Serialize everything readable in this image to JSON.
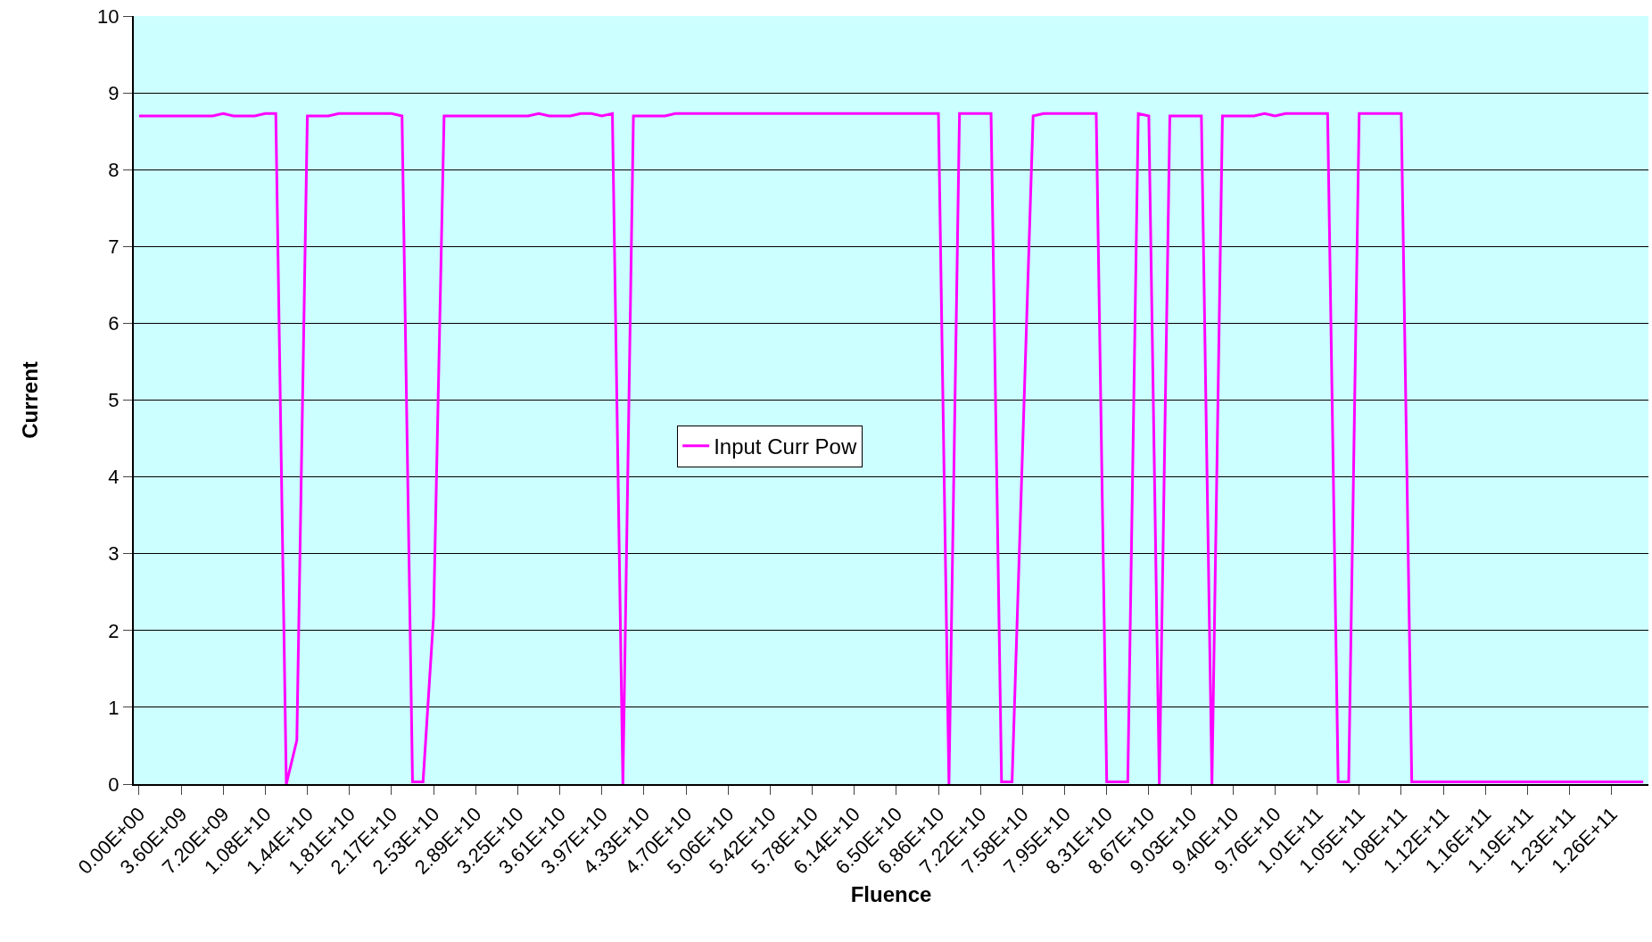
{
  "chart_data": {
    "type": "line",
    "xlabel": "Fluence",
    "ylabel": "Current",
    "categories": [
      "0.00E+00",
      null,
      null,
      null,
      "3.60E+09",
      null,
      null,
      null,
      "7.20E+09",
      null,
      null,
      null,
      "1.08E+10",
      null,
      null,
      null,
      "1.44E+10",
      null,
      null,
      null,
      "1.81E+10",
      null,
      null,
      null,
      "2.17E+10",
      null,
      null,
      null,
      "2.53E+10",
      null,
      null,
      null,
      "2.89E+10",
      null,
      null,
      null,
      "3.25E+10",
      null,
      null,
      null,
      "3.61E+10",
      null,
      null,
      null,
      "3.97E+10",
      null,
      null,
      null,
      "4.33E+10",
      null,
      null,
      null,
      "4.70E+10",
      null,
      null,
      null,
      "5.06E+10",
      null,
      null,
      null,
      "5.42E+10",
      null,
      null,
      null,
      "5.78E+10",
      null,
      null,
      null,
      "6.14E+10",
      null,
      null,
      null,
      "6.50E+10",
      null,
      null,
      null,
      "6.86E+10",
      null,
      null,
      null,
      "7.22E+10",
      null,
      null,
      null,
      "7.58E+10",
      null,
      null,
      null,
      "7.95E+10",
      null,
      null,
      null,
      "8.31E+10",
      null,
      null,
      null,
      "8.67E+10",
      null,
      null,
      null,
      "9.03E+10",
      null,
      null,
      null,
      "9.40E+10",
      null,
      null,
      null,
      "9.76E+10",
      null,
      null,
      null,
      "1.01E+11",
      null,
      null,
      null,
      "1.05E+11",
      null,
      null,
      null,
      "1.08E+11",
      null,
      null,
      null,
      "1.12E+11",
      null,
      null,
      null,
      "1.16E+11",
      null,
      null,
      null,
      "1.19E+11",
      null,
      null,
      null,
      "1.23E+11",
      null,
      null,
      null,
      "1.26E+11",
      null,
      null,
      null
    ],
    "series": [
      {
        "name": "Input Curr Pow",
        "color": "#ff00ff",
        "values": [
          8.7,
          8.7,
          8.7,
          8.7,
          8.7,
          8.7,
          8.7,
          8.7,
          8.73,
          8.7,
          8.7,
          8.7,
          8.73,
          8.73,
          0,
          0.57,
          8.7,
          8.7,
          8.7,
          8.73,
          8.73,
          8.73,
          8.73,
          8.73,
          8.73,
          8.7,
          0.03,
          0.03,
          2.18,
          8.7,
          8.7,
          8.7,
          8.7,
          8.7,
          8.7,
          8.7,
          8.7,
          8.7,
          8.73,
          8.7,
          8.7,
          8.7,
          8.73,
          8.73,
          8.7,
          8.73,
          0,
          8.7,
          8.7,
          8.7,
          8.7,
          8.73,
          8.73,
          8.73,
          8.73,
          8.73,
          8.73,
          8.73,
          8.73,
          8.73,
          8.73,
          8.73,
          8.73,
          8.73,
          8.73,
          8.73,
          8.73,
          8.73,
          8.73,
          8.73,
          8.73,
          8.73,
          8.73,
          8.73,
          8.73,
          8.73,
          8.73,
          0,
          8.73,
          8.73,
          8.73,
          8.73,
          0.03,
          0.03,
          4.37,
          8.7,
          8.73,
          8.73,
          8.73,
          8.73,
          8.73,
          8.73,
          0.03,
          0.03,
          0.03,
          8.73,
          8.7,
          0,
          8.7,
          8.7,
          8.7,
          8.7,
          0,
          8.7,
          8.7,
          8.7,
          8.7,
          8.73,
          8.7,
          8.73,
          8.73,
          8.73,
          8.73,
          8.73,
          0.03,
          0.03,
          8.73,
          8.73,
          8.73,
          8.73,
          8.73,
          0.03,
          0.03,
          0.03,
          0.03,
          0.03,
          0.03,
          0.03,
          0.03,
          0.03,
          0.03,
          0.03,
          0.03,
          0.03,
          0.03,
          0.03,
          0.03,
          0.03,
          0.03,
          0.03,
          0.03,
          0.03,
          0.03,
          0.03
        ]
      }
    ],
    "ylim": [
      0,
      10
    ],
    "yticks": [
      0,
      1,
      2,
      3,
      4,
      5,
      6,
      7,
      8,
      9,
      10
    ],
    "grid": "y",
    "legend": "center",
    "marker": "none",
    "line_style": "solid"
  }
}
